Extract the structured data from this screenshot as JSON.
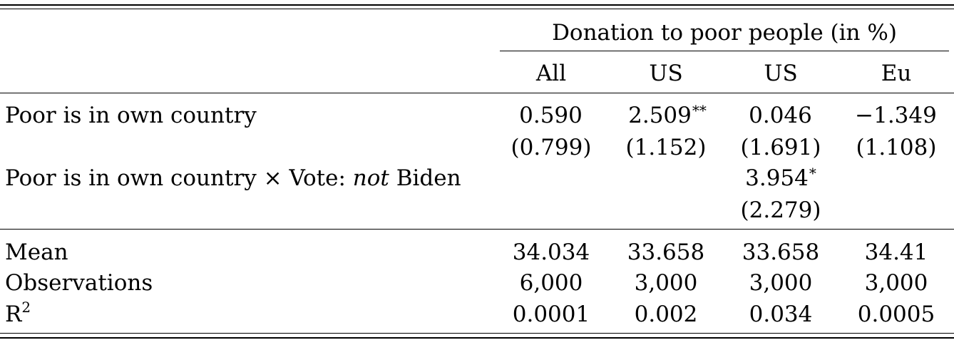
{
  "table": {
    "header": {
      "group_label": "Donation to poor people (in %)",
      "columns": [
        "All",
        "US",
        "US",
        "Eu"
      ]
    },
    "rows": [
      {
        "label": "Poor is in own country",
        "coefficients": [
          "0.590",
          "2.509",
          "0.046",
          "−1.349"
        ],
        "stars": [
          "",
          "**",
          "",
          ""
        ],
        "std_errors": [
          "(0.799)",
          "(1.152)",
          "(1.691)",
          "(1.108)"
        ]
      },
      {
        "label_prefix": "Poor is in own country × Vote: ",
        "label_italic": "not",
        "label_suffix": " Biden",
        "coefficient_col3": "3.954",
        "stars_col3": "*",
        "std_error_col3": "(2.279)"
      }
    ],
    "stats": [
      {
        "label": "Mean",
        "values": [
          "34.034",
          "33.658",
          "33.658",
          "34.41"
        ]
      },
      {
        "label": "Observations",
        "values": [
          "6,000",
          "3,000",
          "3,000",
          "3,000"
        ]
      },
      {
        "label_base": "R",
        "label_sup": "2",
        "values": [
          "0.0001",
          "0.002",
          "0.034",
          "0.0005"
        ]
      }
    ]
  }
}
